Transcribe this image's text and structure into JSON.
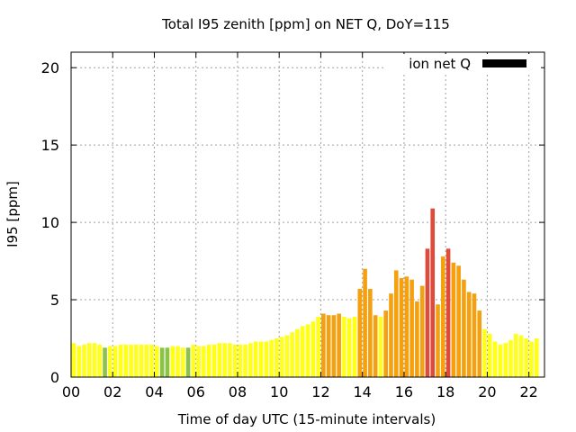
{
  "chart_data": {
    "type": "bar",
    "title": "Total I95 zenith [ppm] on NET Q, DoY=115",
    "xlabel": "Time of day UTC (15-minute intervals)",
    "ylabel": "I95 [ppm]",
    "xlim": [
      0,
      22.75
    ],
    "ylim": [
      0,
      21
    ],
    "x_ticks": [
      "00",
      "02",
      "04",
      "06",
      "08",
      "10",
      "12",
      "14",
      "16",
      "18",
      "20",
      "22"
    ],
    "y_ticks": [
      "0",
      "5",
      "10",
      "15",
      "20"
    ],
    "grid": true,
    "legend": {
      "label": "ion net Q",
      "position": "top-right",
      "color": "#000000"
    },
    "bar_width_hours": 0.2,
    "color_scale": {
      "green": "#8bc34a",
      "yellow": "#ffff1a",
      "orange": "#f5a00f",
      "red": "#e04a3a"
    },
    "bars": [
      {
        "x": 0.125,
        "value": 2.2,
        "color": "#ffff1a"
      },
      {
        "x": 0.375,
        "value": 2.0,
        "color": "#ffff1a"
      },
      {
        "x": 0.625,
        "value": 2.1,
        "color": "#ffff1a"
      },
      {
        "x": 0.875,
        "value": 2.2,
        "color": "#ffff1a"
      },
      {
        "x": 1.125,
        "value": 2.2,
        "color": "#ffff1a"
      },
      {
        "x": 1.375,
        "value": 2.1,
        "color": "#ffff1a"
      },
      {
        "x": 1.625,
        "value": 1.9,
        "color": "#8bc34a"
      },
      {
        "x": 1.875,
        "value": 2.0,
        "color": "#ffff1a"
      },
      {
        "x": 2.125,
        "value": 2.0,
        "color": "#ffff1a"
      },
      {
        "x": 2.375,
        "value": 2.1,
        "color": "#ffff1a"
      },
      {
        "x": 2.625,
        "value": 2.1,
        "color": "#ffff1a"
      },
      {
        "x": 2.875,
        "value": 2.1,
        "color": "#ffff1a"
      },
      {
        "x": 3.125,
        "value": 2.1,
        "color": "#ffff1a"
      },
      {
        "x": 3.375,
        "value": 2.1,
        "color": "#ffff1a"
      },
      {
        "x": 3.625,
        "value": 2.1,
        "color": "#ffff1a"
      },
      {
        "x": 3.875,
        "value": 2.1,
        "color": "#ffff1a"
      },
      {
        "x": 4.125,
        "value": 2.0,
        "color": "#ffff1a"
      },
      {
        "x": 4.375,
        "value": 1.9,
        "color": "#8bc34a"
      },
      {
        "x": 4.625,
        "value": 1.9,
        "color": "#8bc34a"
      },
      {
        "x": 4.875,
        "value": 2.0,
        "color": "#ffff1a"
      },
      {
        "x": 5.125,
        "value": 2.0,
        "color": "#ffff1a"
      },
      {
        "x": 5.375,
        "value": 1.9,
        "color": "#ffff1a"
      },
      {
        "x": 5.625,
        "value": 1.9,
        "color": "#8bc34a"
      },
      {
        "x": 5.875,
        "value": 2.1,
        "color": "#ffff1a"
      },
      {
        "x": 6.125,
        "value": 2.0,
        "color": "#ffff1a"
      },
      {
        "x": 6.375,
        "value": 2.0,
        "color": "#ffff1a"
      },
      {
        "x": 6.625,
        "value": 2.1,
        "color": "#ffff1a"
      },
      {
        "x": 6.875,
        "value": 2.1,
        "color": "#ffff1a"
      },
      {
        "x": 7.125,
        "value": 2.2,
        "color": "#ffff1a"
      },
      {
        "x": 7.375,
        "value": 2.2,
        "color": "#ffff1a"
      },
      {
        "x": 7.625,
        "value": 2.2,
        "color": "#ffff1a"
      },
      {
        "x": 7.875,
        "value": 2.1,
        "color": "#ffff1a"
      },
      {
        "x": 8.125,
        "value": 2.1,
        "color": "#ffff1a"
      },
      {
        "x": 8.375,
        "value": 2.1,
        "color": "#ffff1a"
      },
      {
        "x": 8.625,
        "value": 2.2,
        "color": "#ffff1a"
      },
      {
        "x": 8.875,
        "value": 2.3,
        "color": "#ffff1a"
      },
      {
        "x": 9.125,
        "value": 2.3,
        "color": "#ffff1a"
      },
      {
        "x": 9.375,
        "value": 2.3,
        "color": "#ffff1a"
      },
      {
        "x": 9.625,
        "value": 2.4,
        "color": "#ffff1a"
      },
      {
        "x": 9.875,
        "value": 2.5,
        "color": "#ffff1a"
      },
      {
        "x": 10.125,
        "value": 2.6,
        "color": "#ffff1a"
      },
      {
        "x": 10.375,
        "value": 2.7,
        "color": "#ffff1a"
      },
      {
        "x": 10.625,
        "value": 2.9,
        "color": "#ffff1a"
      },
      {
        "x": 10.875,
        "value": 3.1,
        "color": "#ffff1a"
      },
      {
        "x": 11.125,
        "value": 3.3,
        "color": "#ffff1a"
      },
      {
        "x": 11.375,
        "value": 3.4,
        "color": "#ffff1a"
      },
      {
        "x": 11.625,
        "value": 3.6,
        "color": "#ffff1a"
      },
      {
        "x": 11.875,
        "value": 3.9,
        "color": "#ffff1a"
      },
      {
        "x": 12.125,
        "value": 4.1,
        "color": "#f5a00f"
      },
      {
        "x": 12.375,
        "value": 4.0,
        "color": "#f5a00f"
      },
      {
        "x": 12.625,
        "value": 4.0,
        "color": "#f5a00f"
      },
      {
        "x": 12.875,
        "value": 4.1,
        "color": "#f5a00f"
      },
      {
        "x": 13.125,
        "value": 3.9,
        "color": "#ffff1a"
      },
      {
        "x": 13.375,
        "value": 3.8,
        "color": "#ffff1a"
      },
      {
        "x": 13.625,
        "value": 3.9,
        "color": "#ffff1a"
      },
      {
        "x": 13.875,
        "value": 5.7,
        "color": "#f5a00f"
      },
      {
        "x": 14.125,
        "value": 7.0,
        "color": "#f5a00f"
      },
      {
        "x": 14.375,
        "value": 5.7,
        "color": "#f5a00f"
      },
      {
        "x": 14.625,
        "value": 4.0,
        "color": "#f5a00f"
      },
      {
        "x": 14.875,
        "value": 3.9,
        "color": "#ffff1a"
      },
      {
        "x": 15.125,
        "value": 4.3,
        "color": "#f5a00f"
      },
      {
        "x": 15.375,
        "value": 5.4,
        "color": "#f5a00f"
      },
      {
        "x": 15.625,
        "value": 6.9,
        "color": "#f5a00f"
      },
      {
        "x": 15.875,
        "value": 6.4,
        "color": "#f5a00f"
      },
      {
        "x": 16.125,
        "value": 6.5,
        "color": "#f5a00f"
      },
      {
        "x": 16.375,
        "value": 6.3,
        "color": "#f5a00f"
      },
      {
        "x": 16.625,
        "value": 4.9,
        "color": "#f5a00f"
      },
      {
        "x": 16.875,
        "value": 5.9,
        "color": "#f5a00f"
      },
      {
        "x": 17.125,
        "value": 8.3,
        "color": "#e04a3a"
      },
      {
        "x": 17.375,
        "value": 10.9,
        "color": "#e04a3a"
      },
      {
        "x": 17.625,
        "value": 4.7,
        "color": "#f5a00f"
      },
      {
        "x": 17.875,
        "value": 7.8,
        "color": "#f5a00f"
      },
      {
        "x": 18.125,
        "value": 8.3,
        "color": "#e04a3a"
      },
      {
        "x": 18.375,
        "value": 7.4,
        "color": "#f5a00f"
      },
      {
        "x": 18.625,
        "value": 7.2,
        "color": "#f5a00f"
      },
      {
        "x": 18.875,
        "value": 6.3,
        "color": "#f5a00f"
      },
      {
        "x": 19.125,
        "value": 5.5,
        "color": "#f5a00f"
      },
      {
        "x": 19.375,
        "value": 5.4,
        "color": "#f5a00f"
      },
      {
        "x": 19.625,
        "value": 4.3,
        "color": "#f5a00f"
      },
      {
        "x": 19.875,
        "value": 3.1,
        "color": "#ffff1a"
      },
      {
        "x": 20.125,
        "value": 2.8,
        "color": "#ffff1a"
      },
      {
        "x": 20.375,
        "value": 2.3,
        "color": "#ffff1a"
      },
      {
        "x": 20.625,
        "value": 2.1,
        "color": "#ffff1a"
      },
      {
        "x": 20.875,
        "value": 2.2,
        "color": "#ffff1a"
      },
      {
        "x": 21.125,
        "value": 2.4,
        "color": "#ffff1a"
      },
      {
        "x": 21.375,
        "value": 2.8,
        "color": "#ffff1a"
      },
      {
        "x": 21.625,
        "value": 2.7,
        "color": "#ffff1a"
      },
      {
        "x": 21.875,
        "value": 2.5,
        "color": "#ffff1a"
      },
      {
        "x": 22.125,
        "value": 2.3,
        "color": "#ffff1a"
      },
      {
        "x": 22.375,
        "value": 2.5,
        "color": "#ffff1a"
      }
    ]
  }
}
